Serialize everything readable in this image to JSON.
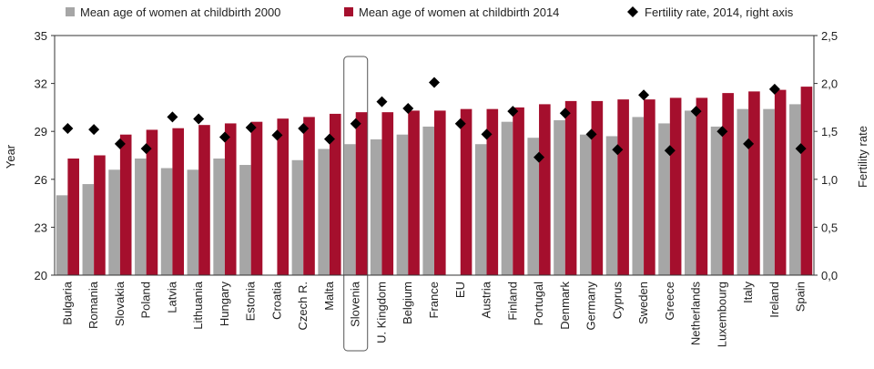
{
  "chart_data": {
    "type": "bar",
    "categories": [
      "Bulgaria",
      "Romania",
      "Slovakia",
      "Poland",
      "Latvia",
      "Lithuania",
      "Hungary",
      "Estonia",
      "Croatia",
      "Czech R.",
      "Malta",
      "Slovenia",
      "U. Kingdom",
      "Belgium",
      "France",
      "EU",
      "Austria",
      "Finland",
      "Portugal",
      "Denmark",
      "Germany",
      "Cyprus",
      "Sweden",
      "Greece",
      "Netherlands",
      "Luxembourg",
      "Italy",
      "Ireland",
      "Spain"
    ],
    "series": [
      {
        "name": "Mean age of women at childbirth 2000",
        "axis": "left",
        "color": "#a6a6a6",
        "values": [
          25.0,
          25.7,
          26.6,
          27.3,
          26.7,
          26.6,
          27.3,
          26.9,
          null,
          27.2,
          27.9,
          28.2,
          28.5,
          28.8,
          29.3,
          null,
          28.2,
          29.6,
          28.6,
          29.7,
          28.8,
          28.7,
          29.9,
          29.5,
          30.3,
          29.3,
          30.4,
          30.4,
          30.7
        ]
      },
      {
        "name": "Mean age of women at childbirth 2014",
        "axis": "left",
        "color": "#a50f2d",
        "values": [
          27.3,
          27.5,
          28.8,
          29.1,
          29.2,
          29.4,
          29.5,
          29.6,
          29.8,
          29.9,
          30.1,
          30.2,
          30.2,
          30.3,
          30.3,
          30.4,
          30.4,
          30.5,
          30.7,
          30.9,
          30.9,
          31.0,
          31.0,
          31.1,
          31.1,
          31.4,
          31.5,
          31.6,
          31.8
        ]
      },
      {
        "name": "Fertility rate, 2014, right axis",
        "axis": "right",
        "type": "scatter",
        "color": "#000000",
        "values": [
          1.53,
          1.52,
          1.37,
          1.32,
          1.65,
          1.63,
          1.44,
          1.54,
          1.46,
          1.53,
          1.42,
          1.58,
          1.81,
          1.74,
          2.01,
          1.58,
          1.47,
          1.71,
          1.23,
          1.69,
          1.47,
          1.31,
          1.88,
          1.3,
          1.71,
          1.5,
          1.37,
          1.94,
          1.32
        ]
      }
    ],
    "ylabel": "Year",
    "ylim": [
      20,
      35
    ],
    "yticks": [
      "20",
      "23",
      "26",
      "29",
      "32",
      "35"
    ],
    "y2label": "Fertility rate",
    "y2lim": [
      0,
      2.5
    ],
    "y2ticks": [
      "0,0",
      "0,5",
      "1,0",
      "1,5",
      "2,0",
      "2,5"
    ],
    "highlight": "Slovenia",
    "legend_position": "top",
    "grid": false
  }
}
